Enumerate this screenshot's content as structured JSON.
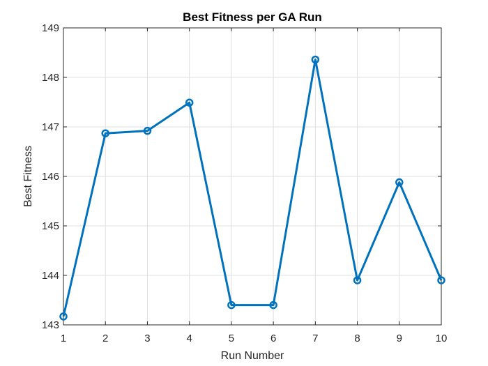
{
  "chart_data": {
    "type": "line",
    "title": "Best Fitness per GA Run",
    "xlabel": "Run Number",
    "ylabel": "Best Fitness",
    "x": [
      1,
      2,
      3,
      4,
      5,
      6,
      7,
      8,
      9,
      10
    ],
    "series": [
      {
        "values": [
          143.17,
          146.87,
          146.92,
          147.49,
          143.4,
          143.4,
          148.36,
          143.9,
          145.88,
          143.9
        ]
      }
    ],
    "xlim": [
      1,
      10
    ],
    "ylim": [
      143,
      149
    ],
    "xticks": [
      1,
      2,
      3,
      4,
      5,
      6,
      7,
      8,
      9,
      10
    ],
    "yticks": [
      143,
      144,
      145,
      146,
      147,
      148,
      149
    ],
    "grid": true,
    "marker": "circle",
    "colors": {
      "line": "#0072BD",
      "grid": "#dfdfdf",
      "axis": "#262626"
    }
  }
}
